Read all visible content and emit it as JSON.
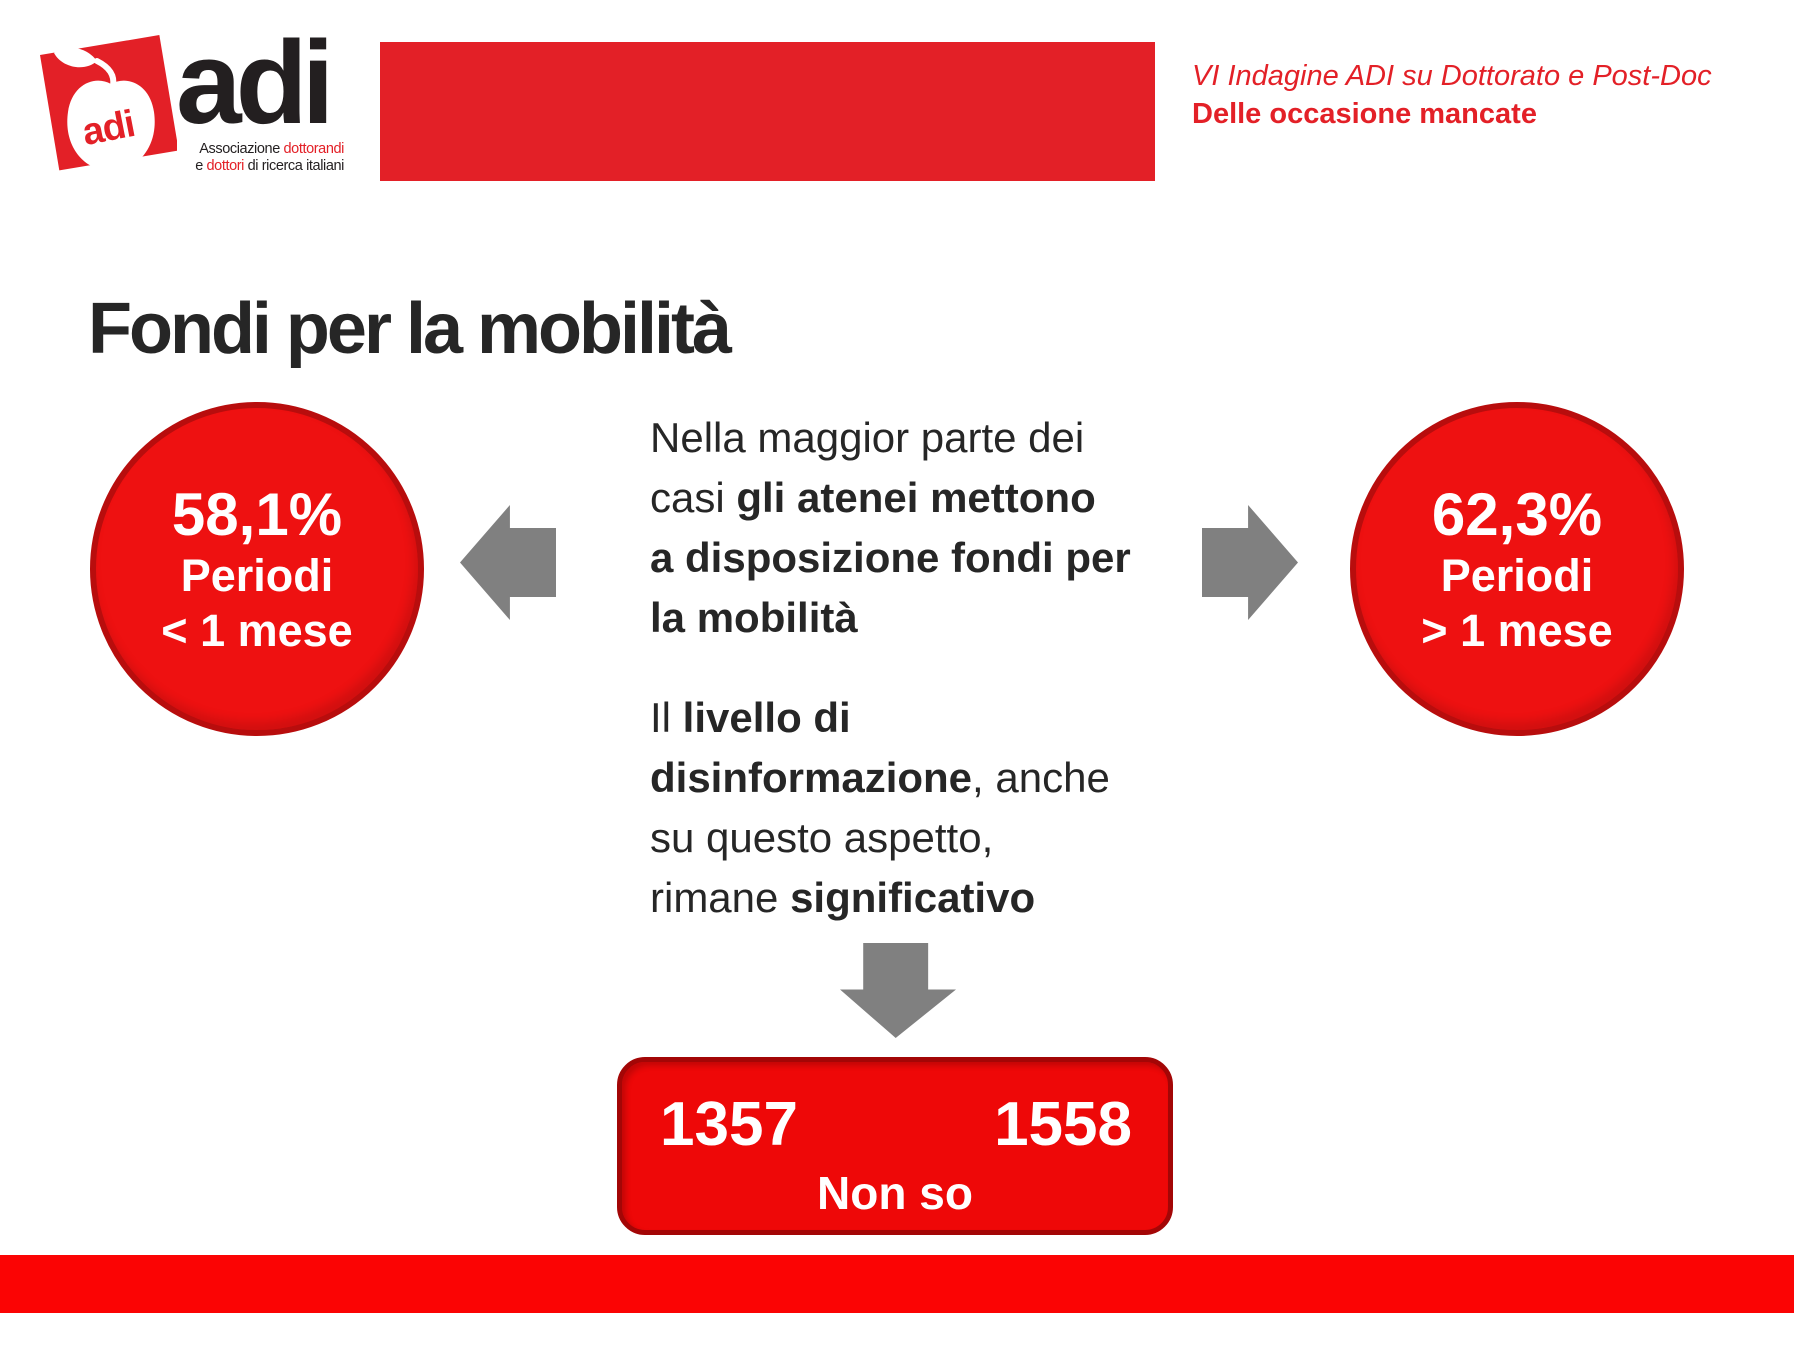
{
  "colors": {
    "brand_red": "#e32027",
    "bubble_red": "#ee1111",
    "bubble_border": "#b80d0d",
    "box_red": "#ee0808",
    "box_border": "#a30606",
    "bar_red": "#fb0404",
    "arrow_gray": "#808080",
    "text_dark": "#262626",
    "logo_black": "#231f20"
  },
  "header": {
    "logo": {
      "apple_label": "adi",
      "wordmark": "adi",
      "tagline1_runs": [
        {
          "t": "Associazione ",
          "c": "logo_black"
        },
        {
          "t": "dottorandi",
          "c": "brand_red"
        }
      ],
      "tagline2_runs": [
        {
          "t": "e ",
          "c": "logo_black"
        },
        {
          "t": "dottori",
          "c": "brand_red"
        },
        {
          "t": " di ricerca italiani",
          "c": "logo_black"
        }
      ]
    },
    "right": {
      "line1": "VI Indagine ADI su Dottorato e Post-Doc",
      "line2": "Delle occasione mancate"
    }
  },
  "title": "Fondi per la mobilità",
  "stats": {
    "left_bubble": {
      "value": "58,1%",
      "label1": "Periodi",
      "label2": "< 1 mese"
    },
    "right_bubble": {
      "value": "62,3%",
      "label1": "Periodi",
      "label2": "> 1 mese"
    }
  },
  "paragraphs": {
    "p1_runs": [
      {
        "t": "Nella maggior parte dei"
      },
      {
        "br": true
      },
      {
        "t": "casi "
      },
      {
        "t": "gli atenei mettono",
        "b": true
      },
      {
        "br": true
      },
      {
        "t": "a disposizione fondi per",
        "b": true
      },
      {
        "br": true
      },
      {
        "t": "la mobilità",
        "b": true
      }
    ],
    "p2_runs": [
      {
        "t": "Il "
      },
      {
        "t": "livello di",
        "b": true
      },
      {
        "br": true
      },
      {
        "t": "disinformazione",
        "b": true
      },
      {
        "t": ", anche"
      },
      {
        "br": true
      },
      {
        "t": "su questo aspetto,"
      },
      {
        "br": true
      },
      {
        "t": "rimane "
      },
      {
        "t": "significativo",
        "b": true
      }
    ]
  },
  "bottom_box": {
    "value_left": "1357",
    "value_right": "1558",
    "label": "Non so"
  }
}
